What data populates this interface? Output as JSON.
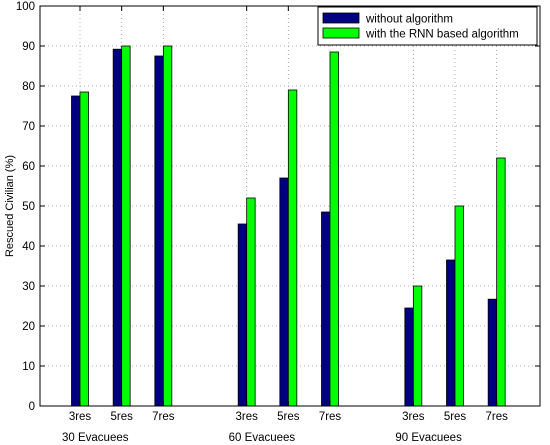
{
  "chart_data": {
    "type": "bar",
    "title": "",
    "xlabel": "",
    "ylabel": "Rescued Civilian (%)",
    "ylim": [
      0,
      100
    ],
    "yticks": [
      0,
      10,
      20,
      30,
      40,
      50,
      60,
      70,
      80,
      90,
      100
    ],
    "grid": true,
    "legend_position": "top-right",
    "groups": [
      {
        "label": "30 Evacuees",
        "categories": [
          "3res",
          "5res",
          "7res"
        ]
      },
      {
        "label": "60 Evacuees",
        "categories": [
          "3res",
          "5res",
          "7res"
        ]
      },
      {
        "label": "90 Evacuees",
        "categories": [
          "3res",
          "5res",
          "7res"
        ]
      }
    ],
    "series": [
      {
        "name": "without algorithm",
        "color": "#000080",
        "values": [
          77.5,
          89.2,
          87.5,
          45.5,
          57.0,
          48.5,
          24.5,
          36.5,
          26.7
        ]
      },
      {
        "name": "with the RNN based algorithm",
        "color": "#00ff00",
        "values": [
          78.5,
          90.0,
          90.0,
          52.0,
          79.0,
          88.5,
          30.0,
          50.0,
          62.0
        ]
      }
    ]
  }
}
